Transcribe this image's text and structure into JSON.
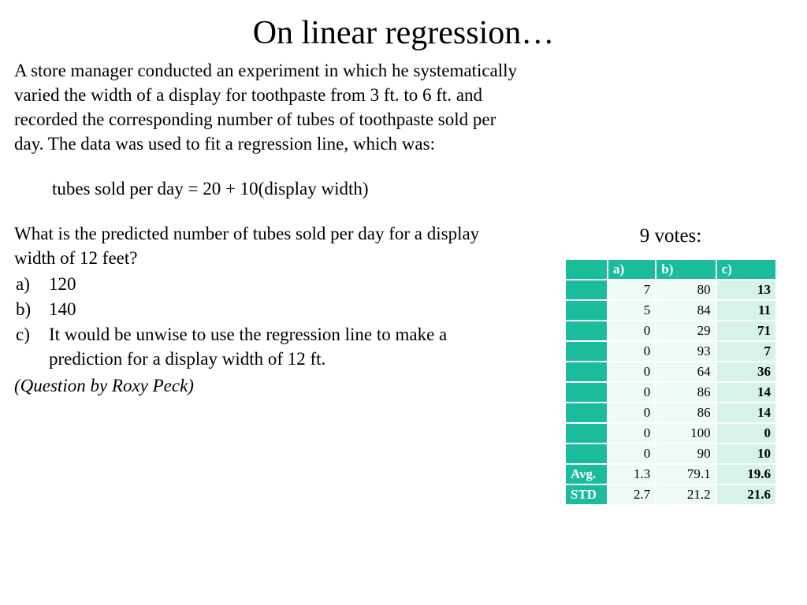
{
  "title": "On linear regression…",
  "paragraph": "A store manager conducted an experiment in which he systematically varied the width of a display for toothpaste from 3 ft. to 6 ft. and recorded the corresponding number of tubes of toothpaste sold per day. The data was used to fit a regression line, which was:",
  "formula": "tubes sold per day = 20 + 10(display width)",
  "question": "What is the predicted number of tubes sold per day for a display width of 12 feet?",
  "options": [
    {
      "letter": "a)",
      "text": "120"
    },
    {
      "letter": "b)",
      "text": "140"
    },
    {
      "letter": "c)",
      "text": "It would be unwise to use the regression line to make a prediction for a display width of 12 ft."
    }
  ],
  "attribution": "(Question by Roxy Peck)",
  "votes_label": "9 votes:",
  "table": {
    "colors": {
      "accent": "#1abc9c",
      "light_fill": "#eefaf6",
      "bold_fill": "#d6f3ea",
      "header_text": "#ffffff",
      "body_text": "#000000",
      "background": "#ffffff"
    },
    "columns": [
      "",
      "a)",
      "b)",
      "c)"
    ],
    "rows": [
      [
        "",
        "7",
        "80",
        "13"
      ],
      [
        "",
        "5",
        "84",
        "11"
      ],
      [
        "",
        "0",
        "29",
        "71"
      ],
      [
        "",
        "0",
        "93",
        "7"
      ],
      [
        "",
        "0",
        "64",
        "36"
      ],
      [
        "",
        "0",
        "86",
        "14"
      ],
      [
        "",
        "0",
        "86",
        "14"
      ],
      [
        "",
        "0",
        "100",
        "0"
      ],
      [
        "",
        "0",
        "90",
        "10"
      ]
    ],
    "summary": [
      {
        "label": "Avg.",
        "a": "1.3",
        "b": "79.1",
        "c": "19.6"
      },
      {
        "label": "STD",
        "a": "2.7",
        "b": "21.2",
        "c": "21.6"
      }
    ],
    "font_size": 17,
    "cell_padding": "2px 6px",
    "border_spacing": 2
  }
}
